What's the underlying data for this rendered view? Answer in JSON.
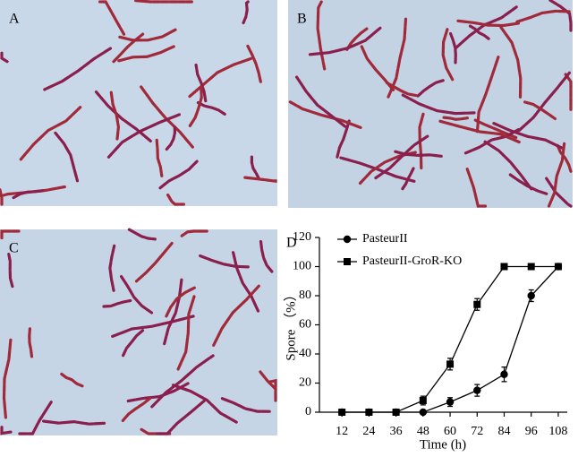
{
  "panels": [
    {
      "label": "A"
    },
    {
      "label": "B"
    },
    {
      "label": "C"
    }
  ],
  "chart_data": {
    "type": "line",
    "panel_label": "D",
    "x_label": "Time (h)",
    "y_label": "Spore （%）",
    "x": [
      12,
      24,
      36,
      48,
      60,
      72,
      84,
      96,
      108
    ],
    "series": [
      {
        "name": "PasteurII",
        "color": "#000000",
        "marker": "circle",
        "values": [
          0,
          0,
          0,
          0,
          7,
          15,
          26,
          80,
          100
        ],
        "errors": [
          0,
          0,
          0,
          0,
          3,
          4,
          5,
          4,
          0
        ]
      },
      {
        "name": "PasteurII-GroR-KO",
        "color": "#000000",
        "marker": "square",
        "values": [
          0,
          0,
          0,
          8,
          33,
          74,
          100,
          100,
          100
        ],
        "errors": [
          0,
          0,
          0,
          3,
          4,
          4,
          0,
          0,
          0
        ]
      }
    ],
    "xlim": [
      2,
      112
    ],
    "ylim": [
      0,
      120
    ],
    "xticks": [
      12,
      24,
      36,
      48,
      60,
      72,
      84,
      96,
      108
    ],
    "yticks": [
      0,
      20,
      40,
      60,
      80,
      100,
      120
    ],
    "legend": "upper left",
    "grid": false
  }
}
